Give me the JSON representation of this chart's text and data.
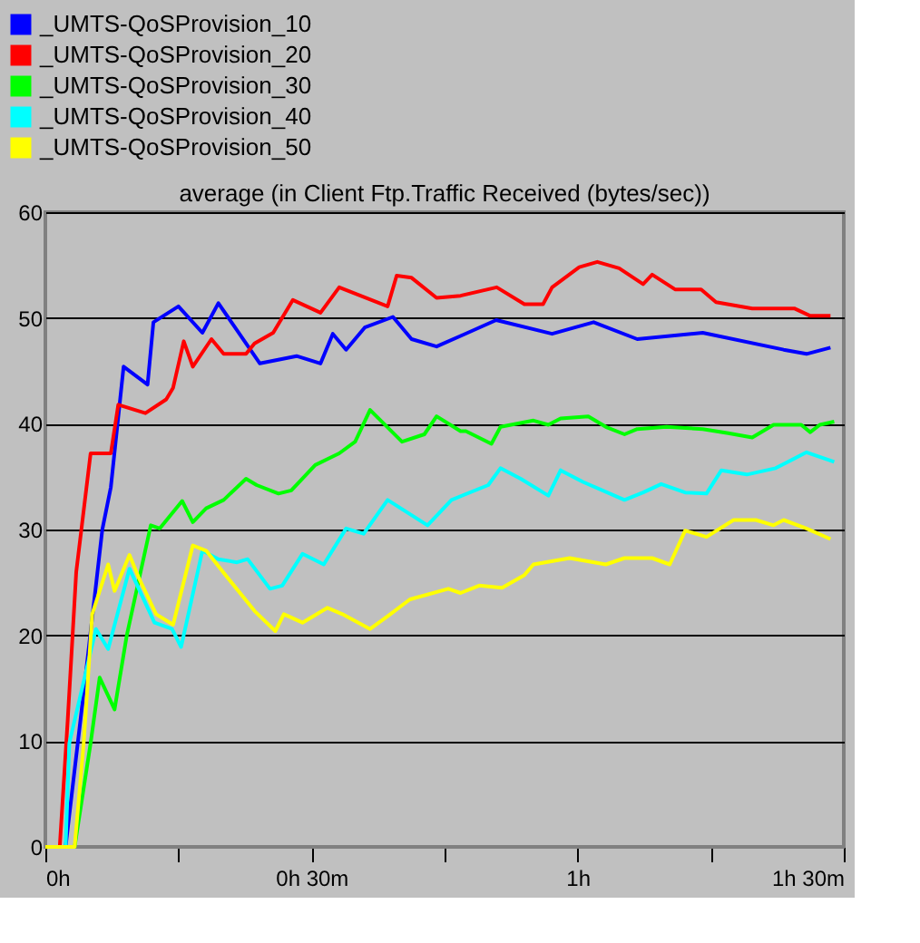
{
  "chart_data": {
    "type": "line",
    "title": "average (in Client Ftp.Traffic Received (bytes/sec))",
    "xlim": [
      0,
      1.5
    ],
    "xticks": [
      {
        "value": 0,
        "label": "0h"
      },
      {
        "value": 0.25,
        "label": null
      },
      {
        "value": 0.5,
        "label": "0h 30m"
      },
      {
        "value": 0.75,
        "label": null
      },
      {
        "value": 1,
        "label": "1h"
      },
      {
        "value": 1.25,
        "label": null
      },
      {
        "value": 1.5,
        "label": "1h 30m"
      }
    ],
    "ylim": [
      0,
      60
    ],
    "yticks": [
      0,
      10,
      20,
      30,
      40,
      50,
      60
    ],
    "grid": "y",
    "legend": "top left",
    "marker": "none",
    "line_style": "solid",
    "series": [
      {
        "name": "_UMTS-QoSProvision_10",
        "color": "#0000ff",
        "x": [
          0,
          0.038,
          0.072,
          0.107,
          0.123,
          0.147,
          0.192,
          0.203,
          0.25,
          0.295,
          0.325,
          0.403,
          0.472,
          0.517,
          0.54,
          0.565,
          0.6,
          0.653,
          0.688,
          0.735,
          0.78,
          0.847,
          0.952,
          1.03,
          1.112,
          1.235,
          1.387,
          1.43,
          1.475
        ],
        "values": [
          0,
          0,
          14.6,
          30,
          34,
          45.4,
          43.7,
          49.6,
          51.1,
          48.6,
          51.4,
          45.7,
          46.4,
          45.7,
          48.5,
          47,
          49.1,
          50.1,
          48,
          47.3,
          48.3,
          49.8,
          48.5,
          49.6,
          48,
          48.6,
          47,
          46.6,
          47.2
        ]
      },
      {
        "name": "_UMTS-QoSProvision_20",
        "color": "#ff0000",
        "x": [
          0,
          0.027,
          0.042,
          0.058,
          0.085,
          0.123,
          0.137,
          0.188,
          0.227,
          0.24,
          0.26,
          0.277,
          0.312,
          0.335,
          0.377,
          0.393,
          0.428,
          0.465,
          0.517,
          0.552,
          0.643,
          0.66,
          0.688,
          0.735,
          0.78,
          0.848,
          0.9,
          0.935,
          0.952,
          1.003,
          1.037,
          1.078,
          1.123,
          1.14,
          1.183,
          1.232,
          1.26,
          1.328,
          1.407,
          1.437,
          1.475
        ],
        "values": [
          0,
          0,
          12,
          26,
          37.2,
          37.2,
          41.8,
          41,
          42.3,
          43.4,
          47.8,
          45.4,
          48,
          46.6,
          46.6,
          47.6,
          48.6,
          51.7,
          50.5,
          52.9,
          51.1,
          54,
          53.8,
          51.9,
          52.1,
          52.9,
          51.3,
          51.3,
          52.9,
          54.8,
          55.3,
          54.7,
          53.2,
          54.1,
          52.7,
          52.7,
          51.5,
          50.9,
          50.9,
          50.2,
          50.2
        ]
      },
      {
        "name": "_UMTS-QoSProvision_30",
        "color": "#00ff00",
        "x": [
          0,
          0.055,
          0.085,
          0.102,
          0.13,
          0.153,
          0.198,
          0.215,
          0.257,
          0.277,
          0.302,
          0.335,
          0.377,
          0.397,
          0.438,
          0.462,
          0.507,
          0.552,
          0.582,
          0.61,
          0.67,
          0.712,
          0.735,
          0.78,
          0.79,
          0.838,
          0.855,
          0.917,
          0.945,
          0.968,
          1.02,
          1.053,
          1.088,
          1.112,
          1.167,
          1.235,
          1.283,
          1.328,
          1.368,
          1.42,
          1.437,
          1.455,
          1.482
        ],
        "values": [
          0,
          0,
          9.8,
          16,
          13,
          20,
          30.4,
          30.1,
          32.7,
          30.7,
          32,
          32.8,
          34.8,
          34.2,
          33.4,
          33.7,
          36.1,
          37.2,
          38.3,
          41.3,
          38.3,
          39,
          40.7,
          39.3,
          39.3,
          38.1,
          39.7,
          40.3,
          39.9,
          40.5,
          40.7,
          39.7,
          39,
          39.5,
          39.7,
          39.5,
          39.1,
          38.7,
          39.9,
          39.9,
          39.2,
          39.9,
          40.2
        ]
      },
      {
        "name": "_UMTS-QoSProvision_40",
        "color": "#00ffff",
        "x": [
          0,
          0.038,
          0.045,
          0.095,
          0.118,
          0.158,
          0.205,
          0.238,
          0.255,
          0.295,
          0.325,
          0.36,
          0.38,
          0.422,
          0.445,
          0.483,
          0.523,
          0.565,
          0.598,
          0.643,
          0.718,
          0.763,
          0.832,
          0.855,
          0.893,
          0.945,
          0.968,
          1.01,
          1.088,
          1.123,
          1.157,
          1.202,
          1.242,
          1.27,
          1.318,
          1.372,
          1.43,
          1.482
        ],
        "values": [
          0,
          0,
          9.8,
          20.6,
          18.7,
          26.3,
          21.2,
          20.6,
          18.9,
          28,
          27.2,
          26.9,
          27.2,
          24.4,
          24.7,
          27.7,
          26.7,
          30.1,
          29.6,
          32.8,
          30.4,
          32.8,
          34.2,
          35.8,
          34.8,
          33.2,
          35.6,
          34.5,
          32.8,
          33.5,
          34.3,
          33.5,
          33.4,
          35.6,
          35.2,
          35.8,
          37.3,
          36.4
        ]
      },
      {
        "name": "_UMTS-QoSProvision_50",
        "color": "#ffff00",
        "x": [
          0,
          0.055,
          0.072,
          0.088,
          0.118,
          0.13,
          0.158,
          0.175,
          0.208,
          0.24,
          0.277,
          0.302,
          0.335,
          0.393,
          0.432,
          0.448,
          0.483,
          0.53,
          0.558,
          0.61,
          0.643,
          0.685,
          0.757,
          0.78,
          0.815,
          0.858,
          0.9,
          0.917,
          0.985,
          1.053,
          1.088,
          1.14,
          1.173,
          1.202,
          1.242,
          1.293,
          1.335,
          1.368,
          1.387,
          1.43,
          1.475
        ],
        "values": [
          0,
          0,
          9.8,
          22,
          26.7,
          24.2,
          27.6,
          25.5,
          22,
          21,
          28.5,
          28,
          25.9,
          22.3,
          20.4,
          22,
          21.2,
          22.6,
          22,
          20.6,
          21.8,
          23.4,
          24.4,
          24,
          24.7,
          24.5,
          25.7,
          26.7,
          27.3,
          26.7,
          27.3,
          27.3,
          26.7,
          29.9,
          29.3,
          30.9,
          30.9,
          30.4,
          30.9,
          30.1,
          29.1
        ]
      }
    ]
  }
}
